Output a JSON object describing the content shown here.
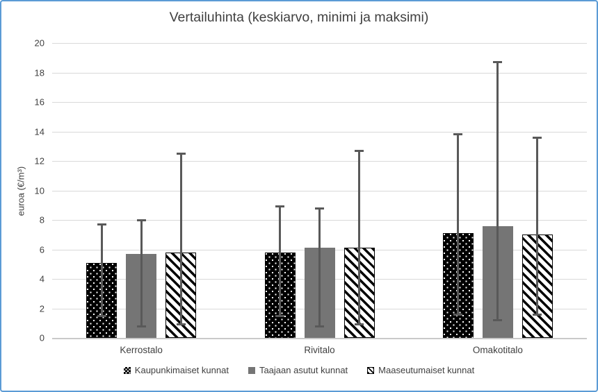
{
  "chart_data": {
    "type": "bar",
    "title": "Vertailuhinta (keskiarvo, minimi ja maksimi)",
    "subtitle": "",
    "xlabel": "",
    "ylabel": "euroa (€/m³)",
    "ylim": [
      0,
      20
    ],
    "ytick_step": 2,
    "grid": true,
    "legend_position": "bottom",
    "error_bars": "min-max",
    "categories": [
      "Kerrostalo",
      "Rivitalo",
      "Omakotitalo"
    ],
    "series": [
      {
        "name": "Kaupunkimaiset kunnat",
        "style": "black-dots",
        "mean": [
          5.1,
          5.8,
          7.1
        ],
        "min": [
          1.5,
          1.5,
          1.6
        ],
        "max": [
          7.7,
          8.9,
          13.8
        ]
      },
      {
        "name": "Taajaan asutut kunnat",
        "style": "solid-gray",
        "mean": [
          5.7,
          6.1,
          7.6
        ],
        "min": [
          0.8,
          0.8,
          1.2
        ],
        "max": [
          8.0,
          8.8,
          18.7
        ]
      },
      {
        "name": "Maaseutumaiset kunnat",
        "style": "diagonal-stripes",
        "mean": [
          5.8,
          6.1,
          7.0
        ],
        "min": [
          0.9,
          0.9,
          1.6
        ],
        "max": [
          12.5,
          12.7,
          13.6
        ]
      }
    ],
    "colors": {
      "frame_border": "#5B9BD5",
      "series_black": "#000000",
      "series_gray": "#757575",
      "error_bar": "#595959",
      "gridline": "#D9D9D9",
      "axis_line": "#C9C9C9",
      "text": "#404040"
    }
  }
}
